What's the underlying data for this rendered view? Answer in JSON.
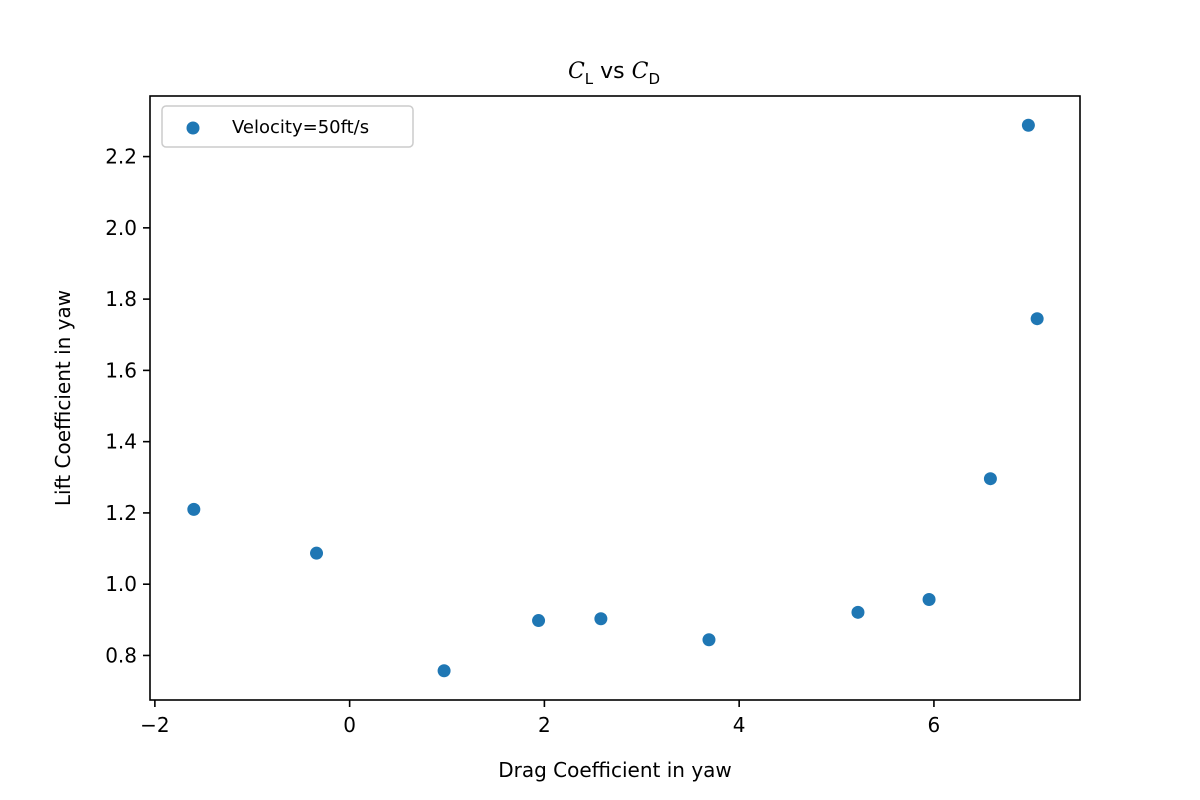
{
  "chart_data": {
    "type": "scatter",
    "title": {
      "c1": "C",
      "s1": "L",
      "mid": " vs ",
      "c2": "C",
      "s2": "D"
    },
    "xlabel": "Drag Coefficient in yaw",
    "ylabel": "Lift Coefficient in yaw",
    "xlim": [
      -2.05,
      7.5
    ],
    "ylim": [
      0.675,
      2.37
    ],
    "xticks": [
      -2,
      0,
      2,
      4,
      6
    ],
    "xtick_labels": [
      "−2",
      "0",
      "2",
      "4",
      "6"
    ],
    "yticks": [
      0.8,
      1.0,
      1.2,
      1.4,
      1.6,
      1.8,
      2.0,
      2.2
    ],
    "ytick_labels": [
      "0.8",
      "1.0",
      "1.2",
      "1.4",
      "1.6",
      "1.8",
      "2.0",
      "2.2"
    ],
    "grid": false,
    "legend_position": "upper-left",
    "series": [
      {
        "name": "Velocity=50ft/s",
        "color": "#1f77b4",
        "x": [
          -1.6,
          -0.34,
          0.97,
          1.94,
          2.58,
          3.69,
          5.22,
          5.95,
          6.58,
          6.97,
          7.06
        ],
        "y": [
          1.21,
          1.087,
          0.757,
          0.898,
          0.903,
          0.844,
          0.921,
          0.957,
          1.296,
          2.288,
          1.745
        ]
      }
    ]
  }
}
